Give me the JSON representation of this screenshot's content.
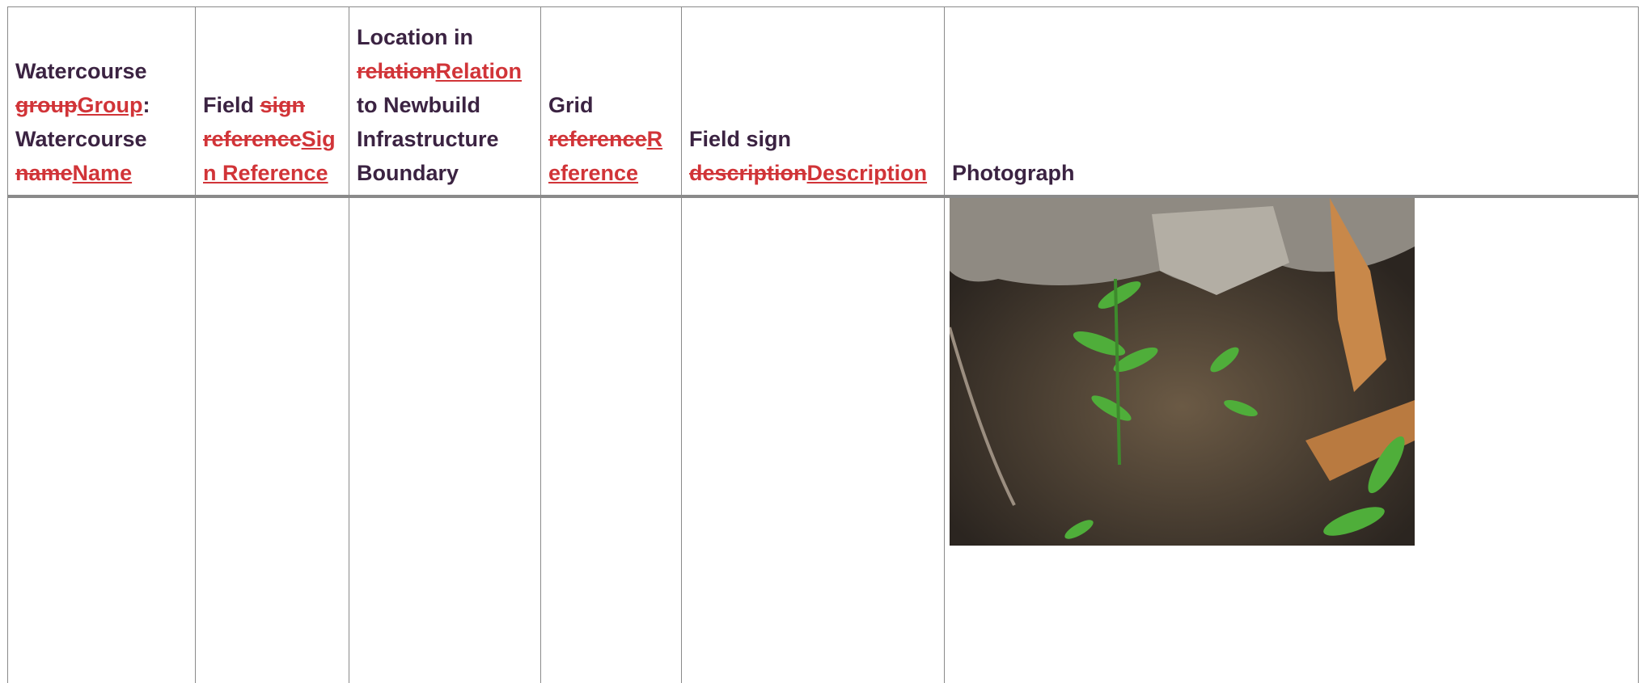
{
  "table": {
    "header": [
      [
        {
          "text": "Watercourse ",
          "kind": "normal"
        },
        {
          "text": "group",
          "kind": "deleted"
        },
        {
          "text": "Group",
          "kind": "inserted"
        },
        {
          "text": ": Watercourse ",
          "kind": "normal"
        },
        {
          "text": "name",
          "kind": "deleted"
        },
        {
          "text": "Name",
          "kind": "inserted"
        }
      ],
      [
        {
          "text": "Field ",
          "kind": "normal"
        },
        {
          "text": "sign reference",
          "kind": "deleted"
        },
        {
          "text": "Sign Reference",
          "kind": "inserted"
        }
      ],
      [
        {
          "text": "Location in ",
          "kind": "normal"
        },
        {
          "text": "relation",
          "kind": "deleted"
        },
        {
          "text": "Relation",
          "kind": "inserted"
        },
        {
          "text": " to Newbuild Infrastructure Boundary",
          "kind": "normal"
        }
      ],
      [
        {
          "text": "Grid ",
          "kind": "normal"
        },
        {
          "text": "reference",
          "kind": "deleted"
        },
        {
          "text": "Reference",
          "kind": "inserted"
        }
      ],
      [
        {
          "text": "Field sign ",
          "kind": "normal"
        },
        {
          "text": "description",
          "kind": "deleted"
        },
        {
          "text": "Description",
          "kind": "inserted"
        }
      ],
      [
        {
          "text": "Photograph",
          "kind": "normal"
        }
      ]
    ]
  }
}
